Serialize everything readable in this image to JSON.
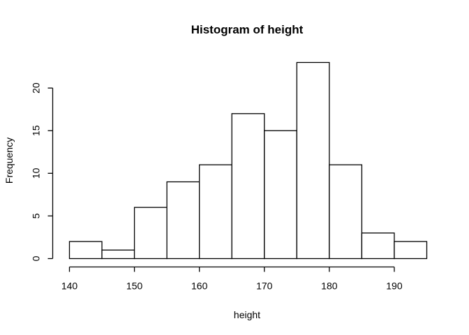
{
  "chart_data": {
    "type": "bar",
    "title": "Histogram of height",
    "xlabel": "height",
    "ylabel": "Frequency",
    "bins": [
      {
        "start": 140,
        "end": 145,
        "count": 2
      },
      {
        "start": 145,
        "end": 150,
        "count": 1
      },
      {
        "start": 150,
        "end": 155,
        "count": 6
      },
      {
        "start": 155,
        "end": 160,
        "count": 9
      },
      {
        "start": 160,
        "end": 165,
        "count": 11
      },
      {
        "start": 165,
        "end": 170,
        "count": 17
      },
      {
        "start": 170,
        "end": 175,
        "count": 15
      },
      {
        "start": 175,
        "end": 180,
        "count": 23
      },
      {
        "start": 180,
        "end": 185,
        "count": 11
      },
      {
        "start": 185,
        "end": 190,
        "count": 3
      },
      {
        "start": 190,
        "end": 195,
        "count": 2
      }
    ],
    "xticks": [
      140,
      150,
      160,
      170,
      180,
      190
    ],
    "yticks": [
      0,
      5,
      10,
      15,
      20
    ],
    "xlim": [
      140,
      195
    ],
    "ylim": [
      0,
      23
    ],
    "grid": false,
    "bar_fill": "#ffffff",
    "bar_stroke": "#000000"
  }
}
